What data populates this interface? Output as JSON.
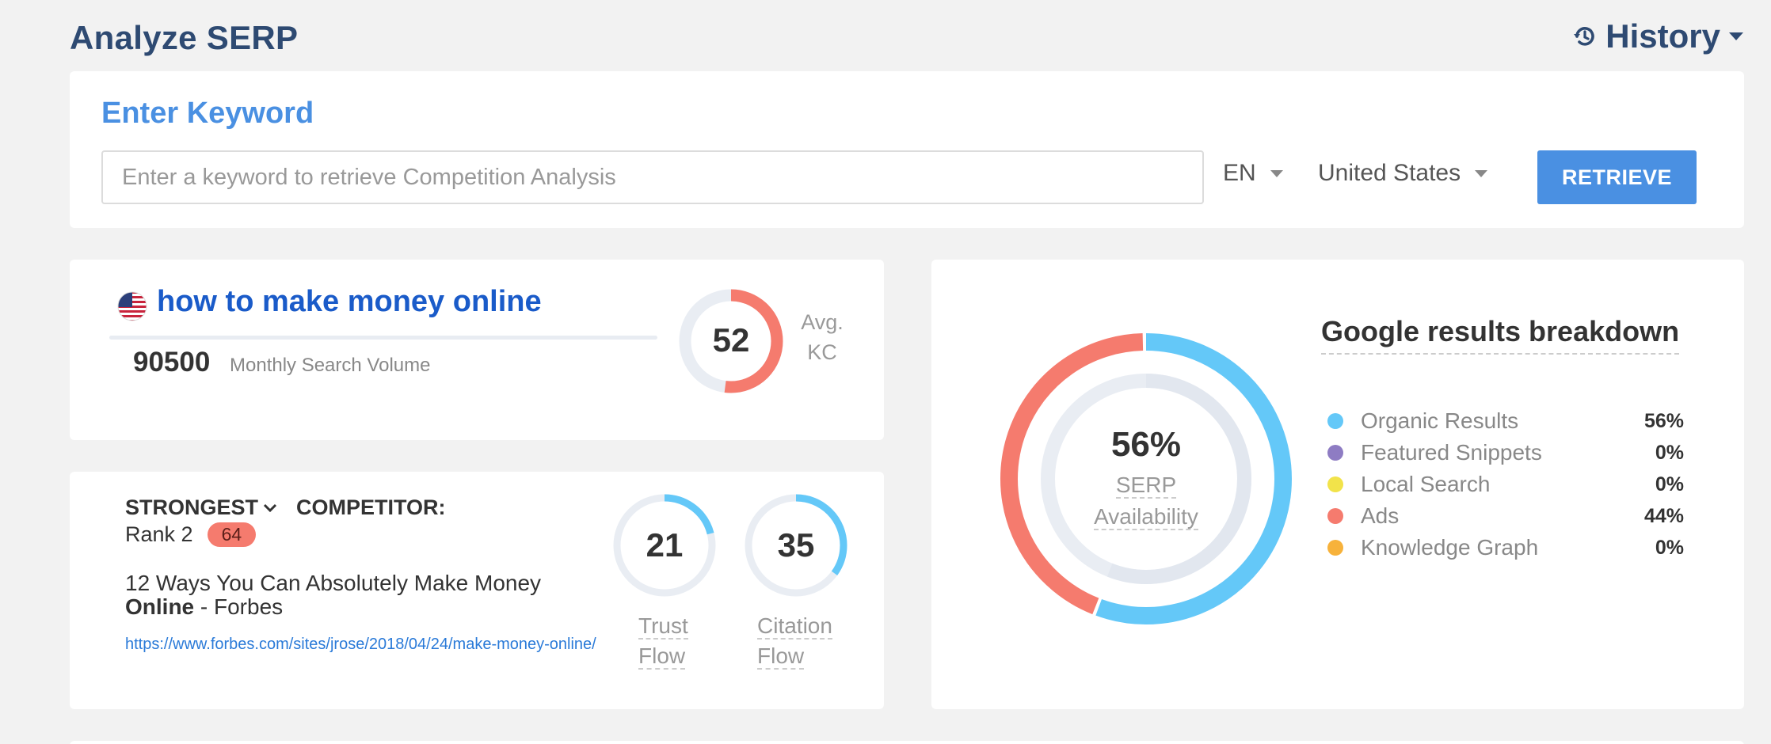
{
  "header": {
    "title": "Analyze SERP",
    "history_label": "History"
  },
  "keyword_form": {
    "heading": "Enter Keyword",
    "placeholder": "Enter a keyword to retrieve Competition Analysis",
    "value": "",
    "language": "EN",
    "country": "United States",
    "retrieve_label": "RETRIEVE"
  },
  "summary": {
    "keyword": "how to make money online",
    "flag_icon": "us-flag-icon",
    "monthly_volume": "90500",
    "monthly_volume_label": "Monthly Search Volume",
    "avg_kc": "52",
    "avg_kc_fraction": 0.52,
    "avg_kc_label_line1": "Avg.",
    "avg_kc_label_line2": "KC"
  },
  "competitor": {
    "strongest_label": "STRONGEST",
    "competitor_label": "COMPETITOR:",
    "rank_label": "Rank 2",
    "rank_badge": "64",
    "title_part1": "12 Ways You Can Absolutely Make Money",
    "title_bold": "Online",
    "title_part2": " - Forbes",
    "url": "https://www.forbes.com/sites/jrose/2018/04/24/make-money-online/",
    "trust_flow": "21",
    "trust_flow_fraction": 0.21,
    "trust_flow_label_line1": "Trust",
    "trust_flow_label_line2": "Flow",
    "citation_flow": "35",
    "citation_flow_fraction": 0.35,
    "citation_flow_label_line1": "Citation",
    "citation_flow_label_line2": "Flow"
  },
  "breakdown": {
    "title": "Google results breakdown",
    "center_value": "56%",
    "center_label_line1": "SERP",
    "center_label_line2": "Availability",
    "availability_fraction": 0.56,
    "items": [
      {
        "name": "Organic Results",
        "value": "56%",
        "fraction": 0.56,
        "color": "#64c8f8"
      },
      {
        "name": "Featured Snippets",
        "value": "0%",
        "fraction": 0,
        "color": "#8e7cc3"
      },
      {
        "name": "Local Search",
        "value": "0%",
        "fraction": 0,
        "color": "#f2e34a"
      },
      {
        "name": "Ads",
        "value": "44%",
        "fraction": 0.44,
        "color": "#f57b6e"
      },
      {
        "name": "Knowledge Graph",
        "value": "0%",
        "fraction": 0,
        "color": "#f7b23b"
      }
    ]
  },
  "colors": {
    "accent": "#4a90e2",
    "title": "#2e4a72",
    "kc_ring": "#f57b6e",
    "flow_ring": "#64c8f8",
    "ring_track": "#e9edf3"
  }
}
